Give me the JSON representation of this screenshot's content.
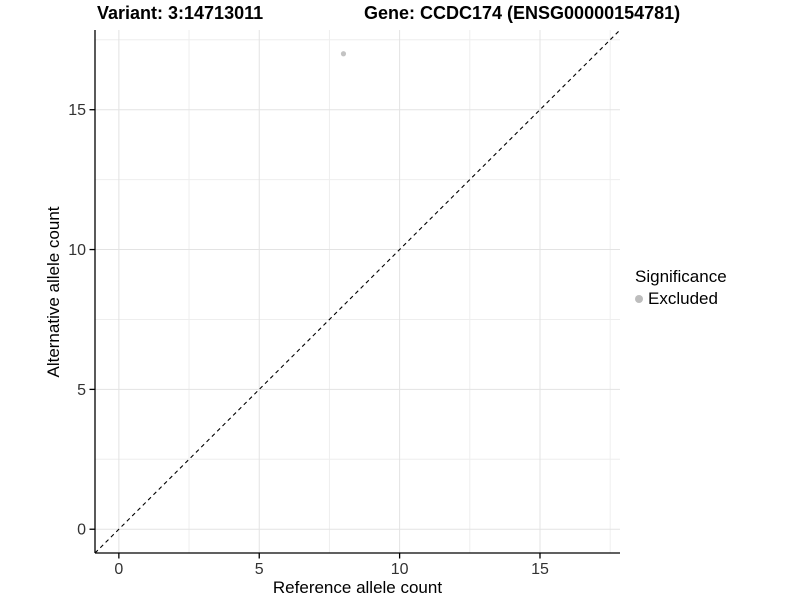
{
  "titles": {
    "variant": "Variant: 3:14713011",
    "gene": "Gene: CCDC174 (ENSG00000154781)"
  },
  "legend": {
    "title": "Significance",
    "items": [
      {
        "label": "Excluded",
        "color": "#bdbdbd"
      }
    ]
  },
  "chart_data": {
    "type": "scatter",
    "title": "Variant: 3:14713011 / Gene: CCDC174 (ENSG00000154781)",
    "xlabel": "Reference allele count",
    "ylabel": "Alternative allele count",
    "xlim": [
      -0.85,
      17.85
    ],
    "ylim": [
      -0.85,
      17.85
    ],
    "x_ticks": [
      0,
      5,
      10,
      15
    ],
    "y_ticks": [
      0,
      5,
      10,
      15
    ],
    "x_minor_ticks": [
      2.5,
      7.5,
      12.5,
      17.5
    ],
    "y_minor_ticks": [
      2.5,
      7.5,
      12.5,
      17.5
    ],
    "grid": true,
    "legend_position": "right",
    "series": [
      {
        "name": "Excluded",
        "color": "#c3c3c3",
        "points": [
          {
            "x": 8,
            "y": 17
          }
        ]
      }
    ],
    "reference_line": {
      "type": "abline",
      "slope": 1,
      "intercept": 0,
      "linetype": "dashed",
      "color": "#000000"
    },
    "colors": {
      "grid_major": "#e3e3e3",
      "grid_minor": "#eeeeee",
      "axis_line": "#000000",
      "tick_label": "#333333"
    }
  }
}
